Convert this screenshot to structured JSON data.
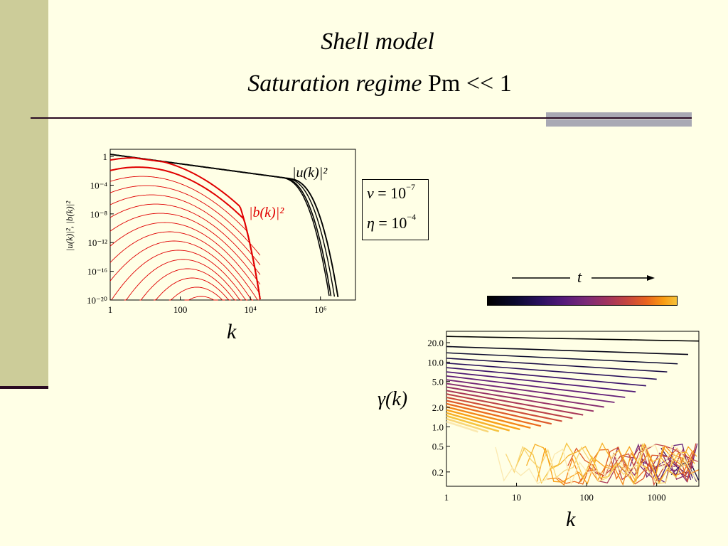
{
  "slide": {
    "title_line1": "Shell model",
    "title_line2_italic": "Saturation regime",
    "title_line2_rest": " Pm << 1"
  },
  "params": {
    "nu_symbol": "ν",
    "nu_value": "= 10",
    "nu_exp": "−7",
    "eta_symbol": "η",
    "eta_value": "= 10",
    "eta_exp": "−4"
  },
  "time_axis": {
    "label": "t"
  },
  "chart_data": [
    {
      "type": "line",
      "xlabel": "k",
      "ylabel": "|u(k)|², |b(k)|²",
      "log_x": true,
      "log_y": true,
      "xlim": [
        1,
        10000000
      ],
      "ylim": [
        1e-20,
        10
      ],
      "x_tick_labels": [
        "1",
        "100",
        "10⁴",
        "10⁶"
      ],
      "y_tick_labels": [
        "1",
        "10⁻⁴",
        "10⁻⁸",
        "10⁻¹²",
        "10⁻¹⁶",
        "10⁻²⁰"
      ],
      "series": [
        {
          "name": "|u(k)|²",
          "color": "#000000",
          "count": 4
        },
        {
          "name": "|b(k)|²",
          "color": "#E00000",
          "count": 16
        }
      ],
      "series_labels": [
        "|u(k)|²",
        "|b(k)|²"
      ]
    },
    {
      "type": "line",
      "xlabel": "k",
      "ylabel": "γ(k)",
      "log_x": true,
      "log_y": true,
      "xlim": [
        1,
        4000
      ],
      "ylim": [
        0.12,
        30
      ],
      "x_tick_labels": [
        "1",
        "10",
        "100",
        "1000"
      ],
      "y_tick_labels": [
        "20.0",
        "10.0",
        "5.0",
        "2.0",
        "1.0",
        "0.5",
        "0.2"
      ],
      "color_scale": [
        "#000000",
        "#0b0930",
        "#2b1160",
        "#551a7a",
        "#7b2a78",
        "#a0335f",
        "#c6463f",
        "#e9631f",
        "#f99b12",
        "#f5c23a",
        "#fbe9b0"
      ]
    }
  ]
}
